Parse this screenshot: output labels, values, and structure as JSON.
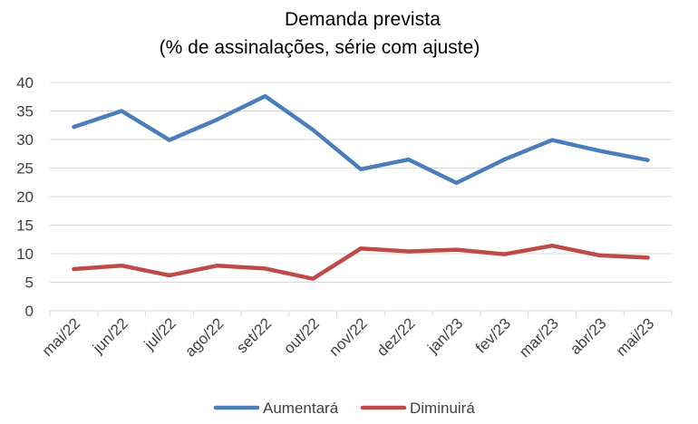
{
  "chart_data": {
    "type": "line",
    "title": "Demanda prevista",
    "subtitle": "(% de assinalações, série com ajuste)",
    "categories": [
      "mai/22",
      "jun/22",
      "jul/22",
      "ago/22",
      "set/22",
      "out/22",
      "nov/22",
      "dez/22",
      "jan/23",
      "fev/23",
      "mar/23",
      "abr/23",
      "mai/23"
    ],
    "series": [
      {
        "name": "Aumentará",
        "color": "#4a7ebb",
        "values": [
          32.2,
          35.0,
          29.9,
          33.5,
          37.6,
          31.7,
          24.8,
          26.5,
          22.4,
          26.5,
          29.9,
          28.0,
          26.4
        ]
      },
      {
        "name": "Diminuirá",
        "color": "#be4b48",
        "values": [
          7.3,
          7.9,
          6.2,
          7.9,
          7.4,
          5.6,
          10.9,
          10.4,
          10.7,
          9.9,
          11.4,
          9.7,
          9.3
        ]
      }
    ],
    "ylim": [
      0,
      40
    ],
    "yticks": [
      0,
      5,
      10,
      15,
      20,
      25,
      30,
      35,
      40
    ],
    "grid": true,
    "legend_position": "bottom"
  }
}
